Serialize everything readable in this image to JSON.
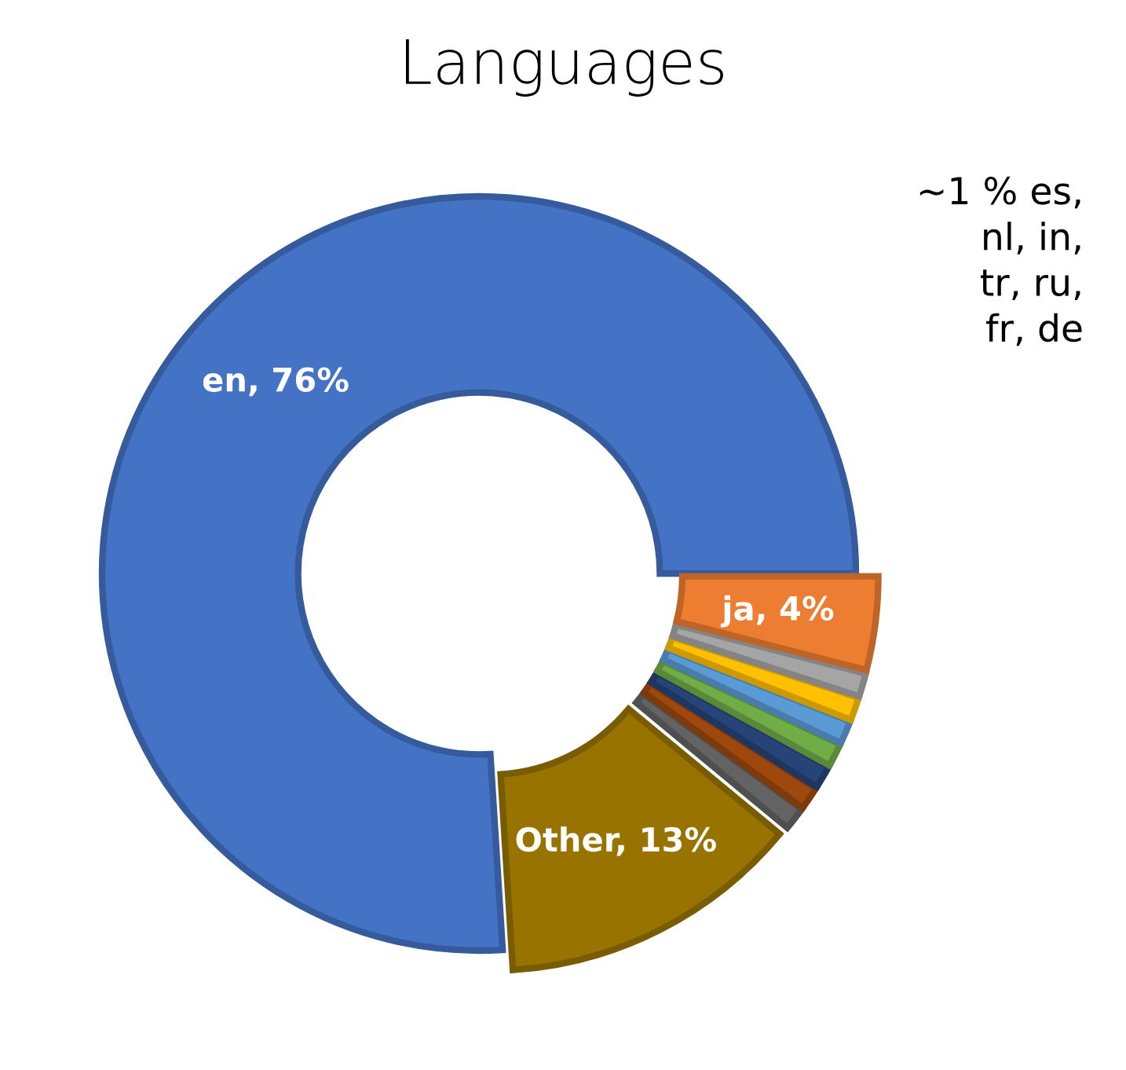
{
  "chart_data": {
    "type": "donut",
    "title": "Languages",
    "categories": [
      "en",
      "Other",
      null,
      null,
      null,
      null,
      null,
      null,
      null,
      "ja"
    ],
    "values": [
      76,
      13,
      1,
      1,
      1,
      1,
      1,
      1,
      1,
      4
    ],
    "colors": [
      "#4472c4",
      "#997300",
      "#636363",
      "#9e480e",
      "#264478",
      "#70ad47",
      "#5b9bd5",
      "#ffc000",
      "#a5a5a5",
      "#ed7d31"
    ],
    "value_labels": [
      "76%",
      "13%",
      null,
      null,
      null,
      null,
      null,
      null,
      null,
      "4%"
    ],
    "annotations": [
      "~1 % es,\nnl, in,\ntr, ru,\nfr, de"
    ],
    "legend": false
  }
}
